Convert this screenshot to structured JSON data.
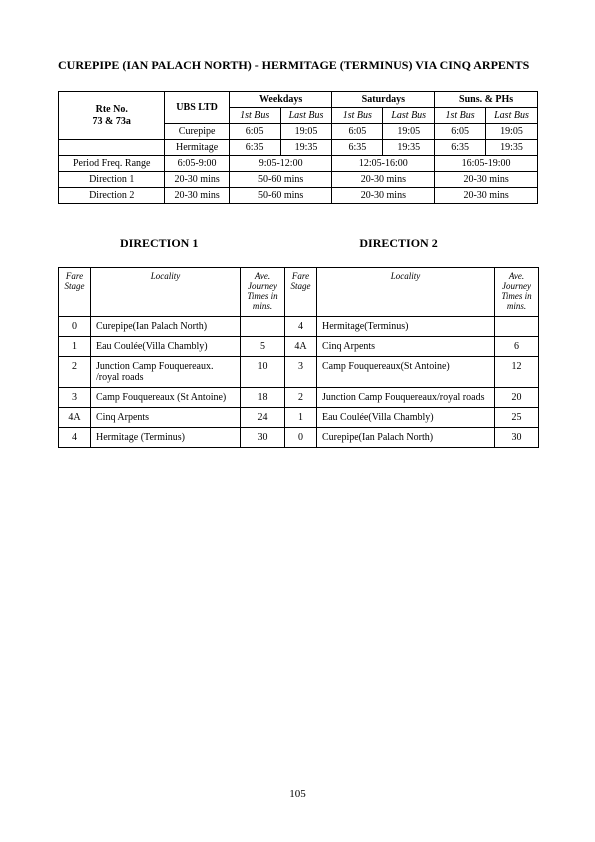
{
  "title": "CUREPIPE (IAN PALACH NORTH) - HERMITAGE (TERMINUS) VIA CINQ ARPENTS",
  "page_number": "105",
  "schedule": {
    "route_label": "Rte No.\n73 & 73a",
    "operator": "UBS LTD",
    "day_groups": [
      "Weekdays",
      "Saturdays",
      "Suns. & PHs"
    ],
    "bus_headers": [
      "1st Bus",
      "Last Bus"
    ],
    "stop_rows": [
      {
        "name": "Curepipe",
        "cells": [
          "6:05",
          "19:05",
          "6:05",
          "19:05",
          "6:05",
          "19:05"
        ]
      },
      {
        "name": "Hermitage",
        "cells": [
          "6:35",
          "19:35",
          "6:35",
          "19:35",
          "6:35",
          "19:35"
        ]
      }
    ],
    "period_label": "Period Freq. Range",
    "period_cells": [
      "6:05-9:00",
      "9:05-12:00",
      "12:05-16:00",
      "16:05-19:00"
    ],
    "dir1_label": "Direction 1",
    "dir1_cells": [
      "20-30 mins",
      "50-60 mins",
      "20-30 mins",
      "20-30 mins"
    ],
    "dir2_label": "Direction 2",
    "dir2_cells": [
      "20-30 mins",
      "50-60 mins",
      "20-30 mins",
      "20-30 mins"
    ]
  },
  "directions": {
    "d1_label": "DIRECTION  1",
    "d2_label": "DIRECTION  2",
    "headers": {
      "fare_stage": "Fare\nStage",
      "locality": "Locality",
      "ave_time": "Ave.\nJourney\nTimes in\nmins."
    },
    "rows": [
      {
        "s1": "0",
        "l1": "Curepipe(Ian Palach North)",
        "t1": "",
        "s2": "4",
        "l2": "Hermitage(Terminus)",
        "t2": ""
      },
      {
        "s1": "1",
        "l1": "Eau Coulée(Villa Chambly)",
        "t1": "5",
        "s2": "4A",
        "l2": "Cinq Arpents",
        "t2": "6"
      },
      {
        "s1": "2",
        "l1": "Junction Camp Fouquereaux. /royal roads",
        "t1": "10",
        "s2": "3",
        "l2": "Camp Fouquereaux(St Antoine)",
        "t2": "12"
      },
      {
        "s1": "3",
        "l1": "Camp Fouquereaux (St Antoine)",
        "t1": "18",
        "s2": "2",
        "l2": "Junction Camp Fouquereaux/royal roads",
        "t2": "20"
      },
      {
        "s1": "4A",
        "l1": "Cinq Arpents",
        "t1": "24",
        "s2": "1",
        "l2": "Eau Coulée(Villa Chambly)",
        "t2": "25"
      },
      {
        "s1": "4",
        "l1": "Hermitage (Terminus)",
        "t1": "30",
        "s2": "0",
        "l2": "Curepipe(Ian Palach North)",
        "t2": "30"
      }
    ]
  }
}
